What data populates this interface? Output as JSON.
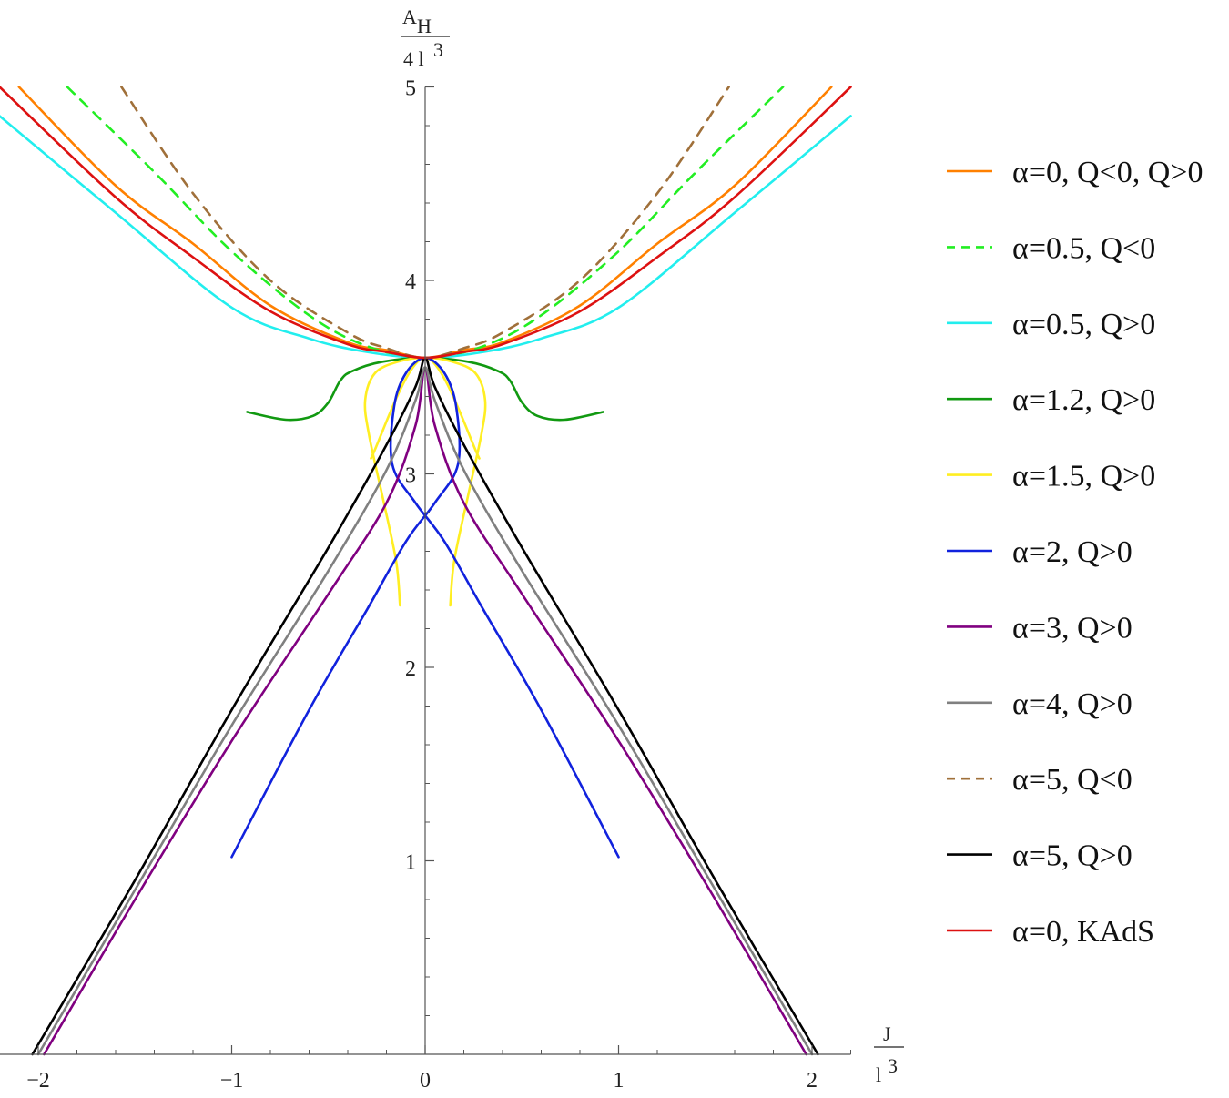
{
  "chart_data": {
    "type": "line",
    "xlabel": {
      "num": "J",
      "den": "l",
      "den_exp": "3"
    },
    "ylabel": {
      "num": "A",
      "num_sub": "H",
      "den": "4 l",
      "den_exp": "3"
    },
    "xlim": [
      -2.2,
      2.2
    ],
    "ylim": [
      0,
      5
    ],
    "x_ticks": [
      {
        "value": -2,
        "label": "−2"
      },
      {
        "value": -1,
        "label": "−1"
      },
      {
        "value": 0,
        "label": "0"
      },
      {
        "value": 1,
        "label": "1"
      },
      {
        "value": 2,
        "label": "2"
      }
    ],
    "y_ticks": [
      {
        "value": 1,
        "label": "1"
      },
      {
        "value": 2,
        "label": "2"
      },
      {
        "value": 3,
        "label": "3"
      },
      {
        "value": 4,
        "label": "4"
      },
      {
        "value": 5,
        "label": "5"
      }
    ],
    "x_minor_step": 0.2,
    "y_minor_step": 0.2,
    "legend_position": "right",
    "series": [
      {
        "name": "α=0, Q<0, Q>0",
        "color": "#ff8000",
        "dash": false,
        "points": [
          [
            -2.1,
            5.0
          ],
          [
            -1.6,
            4.49
          ],
          [
            -1.2,
            4.19
          ],
          [
            -0.8,
            3.87
          ],
          [
            -0.4,
            3.68
          ],
          [
            -0.2,
            3.64
          ],
          [
            0,
            3.6
          ],
          [
            0.2,
            3.64
          ],
          [
            0.4,
            3.68
          ],
          [
            0.8,
            3.87
          ],
          [
            1.2,
            4.19
          ],
          [
            1.6,
            4.49
          ],
          [
            2.1,
            5.0
          ]
        ]
      },
      {
        "name": "α=0.5, Q<0",
        "color": "#22ee22",
        "dash": true,
        "points": [
          [
            -1.85,
            5.0
          ],
          [
            -1.4,
            4.56
          ],
          [
            -1.0,
            4.15
          ],
          [
            -0.6,
            3.82
          ],
          [
            -0.3,
            3.66
          ],
          [
            0,
            3.6
          ],
          [
            0.3,
            3.66
          ],
          [
            0.6,
            3.82
          ],
          [
            1.0,
            4.15
          ],
          [
            1.4,
            4.56
          ],
          [
            1.85,
            5.0
          ]
        ]
      },
      {
        "name": "α=0.5, Q>0",
        "color": "#22eeee",
        "dash": false,
        "points": [
          [
            -2.2,
            4.85
          ],
          [
            -1.6,
            4.35
          ],
          [
            -1.0,
            3.86
          ],
          [
            -0.6,
            3.7
          ],
          [
            -0.3,
            3.63
          ],
          [
            0,
            3.6
          ],
          [
            0.3,
            3.63
          ],
          [
            0.6,
            3.7
          ],
          [
            1.0,
            3.86
          ],
          [
            1.6,
            4.35
          ],
          [
            2.2,
            4.85
          ]
        ]
      },
      {
        "name": "α=1.2, Q>0",
        "color": "#119911",
        "dash": false,
        "points": [
          [
            -0.92,
            3.32
          ],
          [
            -0.72,
            3.28
          ],
          [
            -0.58,
            3.3
          ],
          [
            -0.5,
            3.37
          ],
          [
            -0.44,
            3.48
          ],
          [
            -0.38,
            3.53
          ],
          [
            -0.22,
            3.58
          ],
          [
            0,
            3.6
          ],
          [
            0.22,
            3.58
          ],
          [
            0.38,
            3.53
          ],
          [
            0.44,
            3.48
          ],
          [
            0.5,
            3.37
          ],
          [
            0.58,
            3.3
          ],
          [
            0.72,
            3.28
          ],
          [
            0.92,
            3.32
          ]
        ]
      },
      {
        "name": "α=1.5, Q>0",
        "color": "#ffee22",
        "dash": false,
        "points": [
          [
            -0.13,
            2.32
          ],
          [
            -0.15,
            2.55
          ],
          [
            -0.22,
            2.88
          ],
          [
            -0.29,
            3.2
          ],
          [
            -0.31,
            3.38
          ],
          [
            -0.26,
            3.52
          ],
          [
            -0.14,
            3.58
          ],
          [
            0,
            3.6
          ],
          [
            0.14,
            3.58
          ],
          [
            0.26,
            3.52
          ],
          [
            0.31,
            3.38
          ],
          [
            0.29,
            3.2
          ],
          [
            0.22,
            2.88
          ],
          [
            0.15,
            2.55
          ],
          [
            0.13,
            2.32
          ]
        ],
        "points_b": [
          [
            -0.28,
            3.08
          ],
          [
            0,
            3.6
          ],
          [
            0.28,
            3.08
          ]
        ]
      },
      {
        "name": "α=2, Q>0",
        "color": "#1122dd",
        "dash": false,
        "points": [
          [
            -1.0,
            1.02
          ],
          [
            -0.6,
            1.78
          ],
          [
            -0.3,
            2.3
          ],
          [
            -0.1,
            2.65
          ],
          [
            0.05,
            2.85
          ],
          [
            0.17,
            3.05
          ],
          [
            0.16,
            3.35
          ],
          [
            0.1,
            3.52
          ],
          [
            0,
            3.6
          ],
          [
            -0.1,
            3.52
          ],
          [
            -0.16,
            3.35
          ],
          [
            -0.17,
            3.05
          ],
          [
            -0.05,
            2.85
          ],
          [
            0.1,
            2.65
          ],
          [
            0.3,
            2.3
          ],
          [
            0.6,
            1.78
          ],
          [
            1.0,
            1.02
          ]
        ]
      },
      {
        "name": "α=3, Q>0",
        "color": "#800080",
        "dash": false,
        "points": [
          [
            -1.97,
            0.0
          ],
          [
            -1.5,
            0.8
          ],
          [
            -1.0,
            1.62
          ],
          [
            -0.5,
            2.38
          ],
          [
            -0.2,
            2.85
          ],
          [
            -0.05,
            3.25
          ],
          [
            0,
            3.55
          ],
          [
            0.05,
            3.25
          ],
          [
            0.2,
            2.85
          ],
          [
            0.5,
            2.38
          ],
          [
            1.0,
            1.62
          ],
          [
            1.5,
            0.8
          ],
          [
            1.97,
            0.0
          ]
        ]
      },
      {
        "name": "α=4, Q>0",
        "color": "#808080",
        "dash": false,
        "points": [
          [
            -2.0,
            0.0
          ],
          [
            -1.5,
            0.85
          ],
          [
            -1.0,
            1.7
          ],
          [
            -0.5,
            2.5
          ],
          [
            -0.2,
            3.02
          ],
          [
            -0.05,
            3.38
          ],
          [
            0,
            3.55
          ],
          [
            0.05,
            3.38
          ],
          [
            0.2,
            3.02
          ],
          [
            0.5,
            2.5
          ],
          [
            1.0,
            1.7
          ],
          [
            1.5,
            0.85
          ],
          [
            2.0,
            0.0
          ]
        ]
      },
      {
        "name": "α=5, Q<0",
        "color": "#a0703a",
        "dash": true,
        "points": [
          [
            -1.57,
            5.0
          ],
          [
            -1.2,
            4.45
          ],
          [
            -0.8,
            4.0
          ],
          [
            -0.4,
            3.73
          ],
          [
            -0.2,
            3.65
          ],
          [
            0,
            3.6
          ],
          [
            0.2,
            3.65
          ],
          [
            0.4,
            3.73
          ],
          [
            0.8,
            4.0
          ],
          [
            1.2,
            4.45
          ],
          [
            1.57,
            5.0
          ]
        ]
      },
      {
        "name": "α=5, Q>0",
        "color": "#000000",
        "dash": false,
        "points": [
          [
            -2.03,
            0.0
          ],
          [
            -1.5,
            0.9
          ],
          [
            -1.0,
            1.78
          ],
          [
            -0.5,
            2.62
          ],
          [
            -0.2,
            3.15
          ],
          [
            -0.05,
            3.45
          ],
          [
            0,
            3.6
          ],
          [
            0.05,
            3.45
          ],
          [
            0.2,
            3.15
          ],
          [
            0.5,
            2.62
          ],
          [
            1.0,
            1.78
          ],
          [
            1.5,
            0.9
          ],
          [
            2.03,
            0.0
          ]
        ]
      },
      {
        "name": "α=0, KAdS",
        "color": "#dd1111",
        "dash": false,
        "points": [
          [
            -2.2,
            5.0
          ],
          [
            -1.6,
            4.43
          ],
          [
            -1.2,
            4.12
          ],
          [
            -0.8,
            3.84
          ],
          [
            -0.4,
            3.67
          ],
          [
            -0.2,
            3.63
          ],
          [
            0,
            3.6
          ],
          [
            0.2,
            3.63
          ],
          [
            0.4,
            3.67
          ],
          [
            0.8,
            3.84
          ],
          [
            1.2,
            4.12
          ],
          [
            1.6,
            4.43
          ],
          [
            2.2,
            5.0
          ]
        ]
      }
    ]
  }
}
